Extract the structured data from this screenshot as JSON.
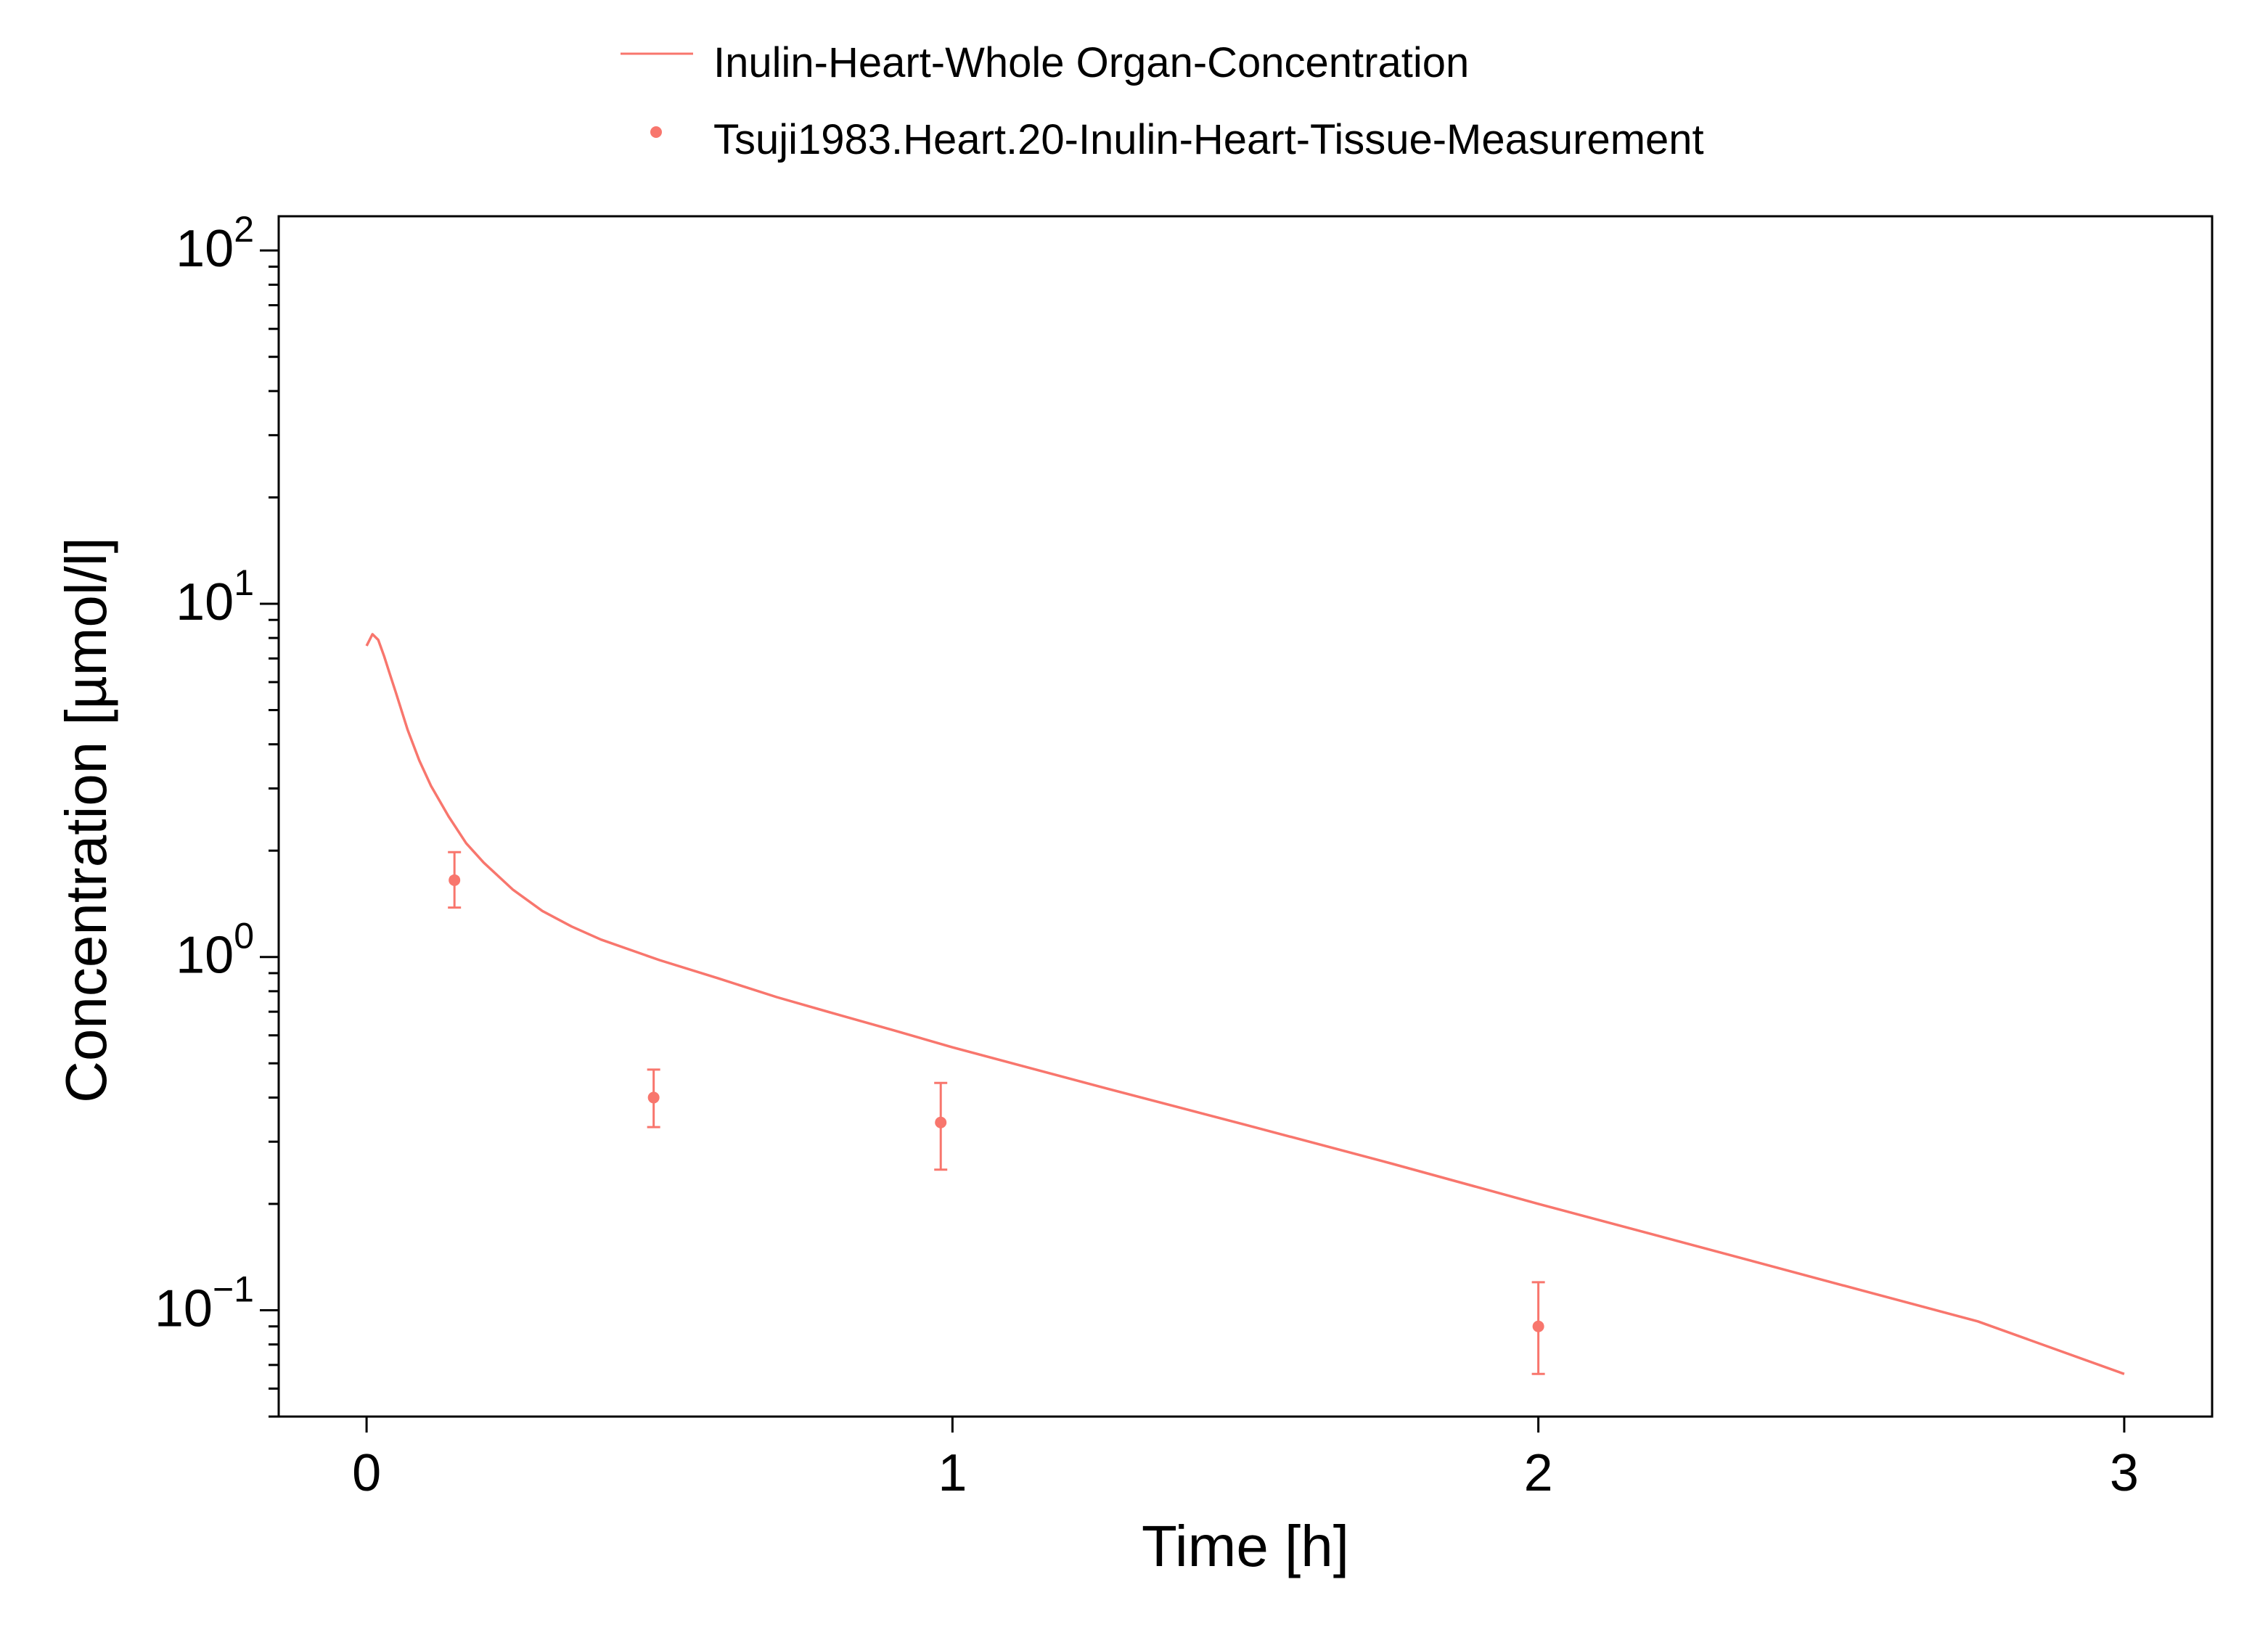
{
  "chart_data": {
    "type": "line",
    "xlabel": "Time [h]",
    "ylabel": "Concentration [µmol/l]",
    "xlim": [
      -0.15,
      3.15
    ],
    "ylim": [
      0.05,
      125
    ],
    "y_scale": "log",
    "x_ticks": [
      0,
      1,
      2,
      3
    ],
    "y_ticks": [
      {
        "value": 100,
        "base": "10",
        "exp": "2"
      },
      {
        "value": 10,
        "base": "10",
        "exp": "1"
      },
      {
        "value": 1,
        "base": "10",
        "exp": "0"
      },
      {
        "value": 0.1,
        "base": "10",
        "exp": "−1"
      }
    ],
    "grid": false,
    "legend_position": "top",
    "series": [
      {
        "name": "Inulin-Heart-Whole Organ-Concentration",
        "kind": "line",
        "color": "#F8766D",
        "x": [
          0.0,
          0.01,
          0.02,
          0.03,
          0.04,
          0.05,
          0.07,
          0.09,
          0.11,
          0.14,
          0.17,
          0.2,
          0.25,
          0.3,
          0.35,
          0.4,
          0.5,
          0.6,
          0.7,
          0.8,
          0.9,
          1.0,
          1.25,
          1.5,
          1.75,
          2.0,
          2.25,
          2.5,
          2.75,
          3.0
        ],
        "y": [
          7.6,
          8.2,
          7.9,
          7.1,
          6.3,
          5.6,
          4.4,
          3.6,
          3.05,
          2.5,
          2.1,
          1.85,
          1.55,
          1.35,
          1.22,
          1.12,
          0.98,
          0.87,
          0.77,
          0.69,
          0.62,
          0.555,
          0.43,
          0.335,
          0.26,
          0.2,
          0.155,
          0.12,
          0.093,
          0.066
        ]
      },
      {
        "name": "Tsuji1983.Heart.20-Inulin-Heart-Tissue-Measurement",
        "kind": "points",
        "color": "#F8766D",
        "points": [
          {
            "x": 0.15,
            "y": 1.65,
            "ymin": 1.38,
            "ymax": 1.98
          },
          {
            "x": 0.49,
            "y": 0.4,
            "ymin": 0.33,
            "ymax": 0.48
          },
          {
            "x": 0.98,
            "y": 0.34,
            "ymin": 0.25,
            "ymax": 0.44
          },
          {
            "x": 2.0,
            "y": 0.09,
            "ymin": 0.066,
            "ymax": 0.12
          }
        ]
      }
    ]
  }
}
